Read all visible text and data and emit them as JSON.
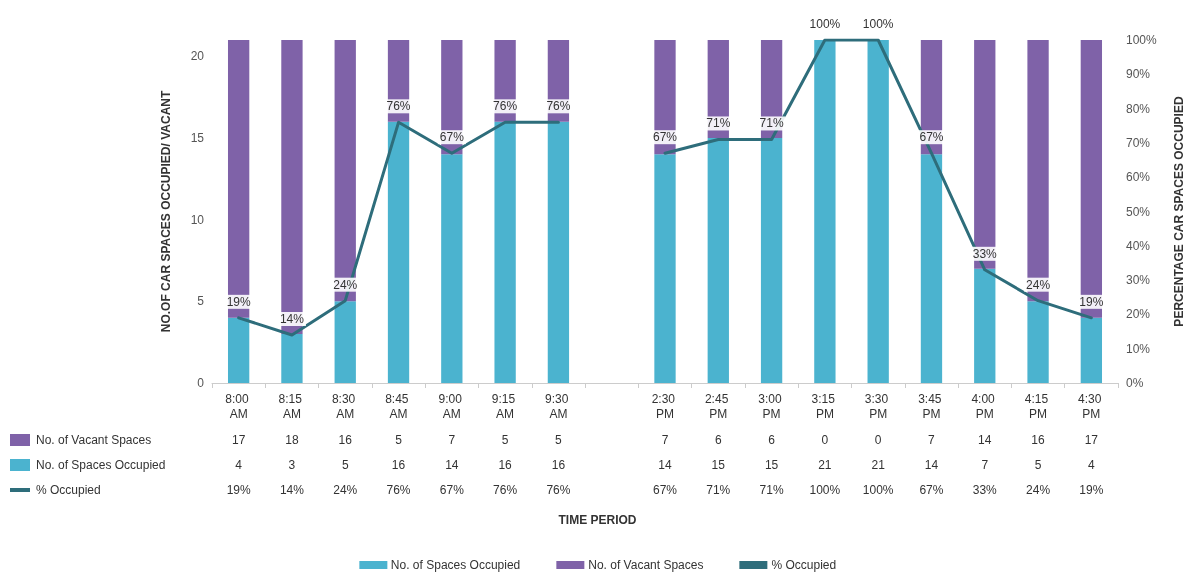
{
  "chart_data": {
    "type": "bar",
    "stacked": true,
    "categories": [
      "8:00 AM",
      "8:15 AM",
      "8:30 AM",
      "8:45 AM",
      "9:00 AM",
      "9:15 AM",
      "9:30 AM",
      null,
      "2:30 PM",
      "2:45 PM",
      "3:00 PM",
      "3:15 PM",
      "3:30 PM",
      "3:45 PM",
      "4:00 PM",
      "4:15 PM",
      "4:30 PM"
    ],
    "series": [
      {
        "name": "No. of Spaces Occupied",
        "color": "#4bb3cf",
        "values": [
          4,
          3,
          5,
          16,
          14,
          16,
          16,
          null,
          14,
          15,
          15,
          21,
          21,
          14,
          7,
          5,
          4
        ],
        "value_labels": [
          "4",
          "3",
          "5",
          "16",
          "14",
          "16",
          "16",
          null,
          "14",
          "15",
          "15",
          "21",
          "21",
          "14",
          "7",
          "5",
          "4"
        ]
      },
      {
        "name": "No. of Vacant Spaces",
        "color": "#7f62a8",
        "values": [
          17,
          18,
          16,
          5,
          7,
          5,
          5,
          null,
          7,
          6,
          6,
          0,
          0,
          7,
          14,
          16,
          17
        ],
        "value_labels": [
          "17",
          "18",
          "16",
          "5",
          "7",
          "5",
          "5",
          null,
          "7",
          "6",
          "6",
          "0",
          "0",
          "7",
          "14",
          "16",
          "17"
        ]
      },
      {
        "name": "% Occupied",
        "type": "line",
        "axis": "y2",
        "color": "#2e6d7b",
        "values": [
          19,
          14,
          24,
          76,
          67,
          76,
          76,
          null,
          67,
          71,
          71,
          100,
          100,
          67,
          33,
          24,
          19
        ],
        "value_labels": [
          "19%",
          "14%",
          "24%",
          "76%",
          "67%",
          "76%",
          "76%",
          null,
          "67%",
          "71%",
          "71%",
          "100%",
          "100%",
          "67%",
          "33%",
          "24%",
          "19%"
        ]
      }
    ],
    "annotations": [
      "TIME PERIOD"
    ],
    "ylabel": "NO.OF CAR SPACES OCCUPIED/ VACANT",
    "y2label": "PERCENTAGE CAR SPACES OCCUPIED",
    "ylim": [
      0,
      21
    ],
    "yticks": [
      0,
      5,
      10,
      15,
      20
    ],
    "y2lim": [
      0,
      100
    ],
    "y2ticks": [
      {
        "value": 0,
        "label": "0%"
      },
      {
        "value": 10,
        "label": "10%"
      },
      {
        "value": 20,
        "label": "20%"
      },
      {
        "value": 30,
        "label": "30%"
      },
      {
        "value": 40,
        "label": "40%"
      },
      {
        "value": 50,
        "label": "50%"
      },
      {
        "value": 60,
        "label": "60%"
      },
      {
        "value": 70,
        "label": "70%"
      },
      {
        "value": 80,
        "label": "80%"
      },
      {
        "value": 90,
        "label": "90%"
      },
      {
        "value": 100,
        "label": "100%"
      }
    ],
    "grid": false,
    "legend": "bottom",
    "marker": "none",
    "line_style": "solid"
  }
}
